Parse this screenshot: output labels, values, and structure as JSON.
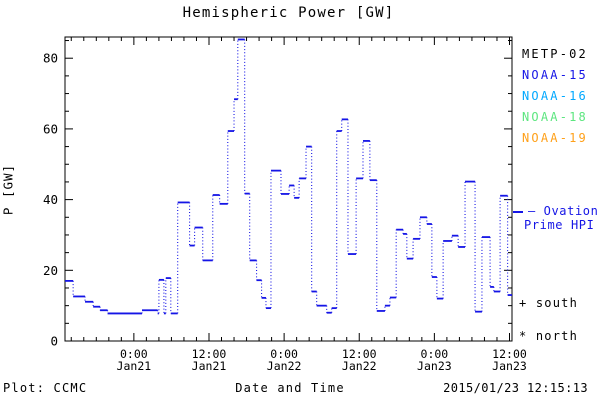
{
  "footer": {
    "plot_credit": "Plot: CCMC",
    "timestamp": "2015/01/23 12:15:13"
  },
  "legend": {
    "satellites": [
      {
        "label": "METP-02",
        "color": "#000000"
      },
      {
        "label": "NOAA-15",
        "color": "#1515e6"
      },
      {
        "label": "NOAA-16",
        "color": "#00a8ff"
      },
      {
        "label": "NOAA-18",
        "color": "#5ce67f"
      },
      {
        "label": "NOAA-19",
        "color": "#ffa019"
      }
    ],
    "ovation": {
      "line1": "Ovation",
      "line2": "Prime HPI",
      "color": "#1515e6"
    },
    "markers": [
      {
        "symbol": "+",
        "label": "south"
      },
      {
        "symbol": "*",
        "label": "north"
      }
    ]
  },
  "chart_data": {
    "type": "line",
    "step": true,
    "title": "Hemispheric Power [GW]",
    "xlabel": "Date and Time",
    "ylabel": "P [GW]",
    "line_color": "#1515e6",
    "ylim": [
      0,
      86
    ],
    "xlim_hours": [
      -11,
      60.4
    ],
    "y_tick_labels": [
      "0",
      "20",
      "40",
      "60",
      "80"
    ],
    "y_major_step": 20,
    "y_minor_step": 5,
    "x_minor_step_hours": 2,
    "x_ticks": [
      {
        "hour": 0,
        "time": "0:00",
        "date": "Jan21"
      },
      {
        "hour": 12,
        "time": "12:00",
        "date": "Jan21"
      },
      {
        "hour": 24,
        "time": "0:00",
        "date": "Jan22"
      },
      {
        "hour": 36,
        "time": "12:00",
        "date": "Jan22"
      },
      {
        "hour": 48,
        "time": "0:00",
        "date": "Jan23"
      },
      {
        "hour": 60,
        "time": "12:00",
        "date": "Jan23"
      }
    ],
    "series": [
      {
        "name": "Ovation Prime HPI",
        "units": "GW",
        "points_hour_gw": [
          [
            -11.0,
            17.0
          ],
          [
            -9.7,
            12.6
          ],
          [
            -7.8,
            11.1
          ],
          [
            -6.5,
            9.7
          ],
          [
            -5.4,
            8.7
          ],
          [
            -4.2,
            7.8
          ],
          [
            1.3,
            8.7
          ],
          [
            3.8,
            7.8
          ],
          [
            4.0,
            17.3
          ],
          [
            4.8,
            7.8
          ],
          [
            5.1,
            17.8
          ],
          [
            5.9,
            7.8
          ],
          [
            7.0,
            39.2
          ],
          [
            8.9,
            27.0
          ],
          [
            9.7,
            32.1
          ],
          [
            11.0,
            22.8
          ],
          [
            12.6,
            41.3
          ],
          [
            13.7,
            38.8
          ],
          [
            15.0,
            59.4
          ],
          [
            16.0,
            68.4
          ],
          [
            16.6,
            85.3
          ],
          [
            17.7,
            41.7
          ],
          [
            18.5,
            22.8
          ],
          [
            19.6,
            17.2
          ],
          [
            20.4,
            12.2
          ],
          [
            21.1,
            9.3
          ],
          [
            21.9,
            48.2
          ],
          [
            23.5,
            41.6
          ],
          [
            24.8,
            44.0
          ],
          [
            25.6,
            40.5
          ],
          [
            26.4,
            46.0
          ],
          [
            27.5,
            55.0
          ],
          [
            28.4,
            14.0
          ],
          [
            29.2,
            10.0
          ],
          [
            30.8,
            8.0
          ],
          [
            31.6,
            9.3
          ],
          [
            32.4,
            59.4
          ],
          [
            33.2,
            62.7
          ],
          [
            34.2,
            24.6
          ],
          [
            35.5,
            46.0
          ],
          [
            36.6,
            56.6
          ],
          [
            37.7,
            45.5
          ],
          [
            38.8,
            8.5
          ],
          [
            40.1,
            10.0
          ],
          [
            40.9,
            12.3
          ],
          [
            41.9,
            31.5
          ],
          [
            43.0,
            30.3
          ],
          [
            43.6,
            23.3
          ],
          [
            44.6,
            28.9
          ],
          [
            45.7,
            35.0
          ],
          [
            46.8,
            33.1
          ],
          [
            47.6,
            18.1
          ],
          [
            48.4,
            12.0
          ],
          [
            49.4,
            28.3
          ],
          [
            50.8,
            29.8
          ],
          [
            51.8,
            26.6
          ],
          [
            52.9,
            45.1
          ],
          [
            54.5,
            8.3
          ],
          [
            55.6,
            29.4
          ],
          [
            56.9,
            15.3
          ],
          [
            57.5,
            14.0
          ],
          [
            58.5,
            41.1
          ],
          [
            59.7,
            13.0
          ]
        ]
      }
    ],
    "legend_position": "right-outside",
    "grid": false
  }
}
